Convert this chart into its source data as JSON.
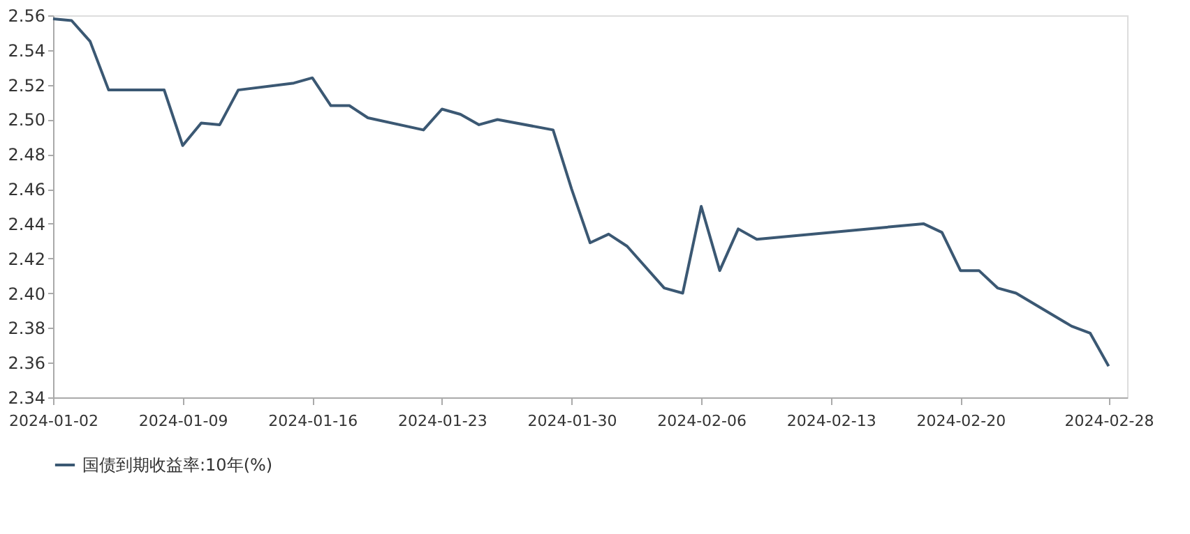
{
  "chart_data": {
    "type": "line",
    "legend": "bottom",
    "grid": false,
    "marker": "none",
    "line_style": "solid",
    "x": [
      "2024-01-02",
      "2024-01-03",
      "2024-01-04",
      "2024-01-05",
      "2024-01-08",
      "2024-01-09",
      "2024-01-10",
      "2024-01-11",
      "2024-01-12",
      "2024-01-15",
      "2024-01-16",
      "2024-01-17",
      "2024-01-18",
      "2024-01-19",
      "2024-01-22",
      "2024-01-23",
      "2024-01-24",
      "2024-01-25",
      "2024-01-26",
      "2024-01-29",
      "2024-01-30",
      "2024-01-31",
      "2024-02-01",
      "2024-02-02",
      "2024-02-04",
      "2024-02-05",
      "2024-02-06",
      "2024-02-07",
      "2024-02-08",
      "2024-02-09",
      "2024-02-18",
      "2024-02-19",
      "2024-02-20",
      "2024-02-21",
      "2024-02-22",
      "2024-02-23",
      "2024-02-26",
      "2024-02-27",
      "2024-02-28"
    ],
    "series": [
      {
        "name": "国债到期收益率:10年(%)",
        "color": "#3b5873",
        "values": [
          2.558,
          2.557,
          2.545,
          2.517,
          2.517,
          2.485,
          2.498,
          2.497,
          2.517,
          2.521,
          2.524,
          2.508,
          2.508,
          2.501,
          2.494,
          2.506,
          2.503,
          2.497,
          2.5,
          2.494,
          2.46,
          2.429,
          2.434,
          2.427,
          2.403,
          2.4,
          2.45,
          2.413,
          2.437,
          2.431,
          2.44,
          2.435,
          2.413,
          2.413,
          2.403,
          2.4,
          2.381,
          2.377,
          2.358
        ]
      }
    ],
    "xlim": [
      "2024-01-02",
      "2024-02-29"
    ],
    "xticks": [
      "2024-01-02",
      "2024-01-09",
      "2024-01-16",
      "2024-01-23",
      "2024-01-30",
      "2024-02-06",
      "2024-02-13",
      "2024-02-20",
      "2024-02-28"
    ],
    "ylim": [
      2.34,
      2.56
    ],
    "yticks": [
      2.34,
      2.36,
      2.38,
      {
        "value": 2.4,
        "label": "2.40"
      },
      2.42,
      2.44,
      2.46,
      2.48,
      {
        "value": 2.5,
        "label": "2.50"
      },
      2.52,
      2.54,
      2.56
    ]
  }
}
